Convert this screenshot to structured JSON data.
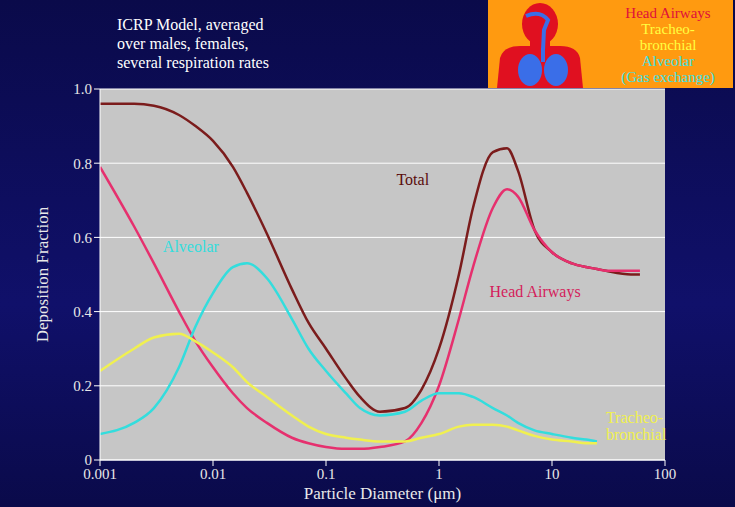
{
  "chart_data": {
    "type": "line",
    "title": "ICRP Model, averaged over males, females, several respiration rates",
    "x_label": "Particle Diameter (μm)",
    "y_label": "Deposition Fraction",
    "log": "x",
    "grid": true,
    "xlim": [
      0.001,
      100
    ],
    "xticks": [
      0.001,
      0.01,
      0.1,
      1,
      10,
      100
    ],
    "ylim": [
      0,
      1
    ],
    "yticks": [
      0,
      0.2,
      0.4,
      0.6,
      0.8,
      {
        "value": 1,
        "label": "1.0"
      }
    ],
    "x": [
      0.001,
      0.002,
      0.003,
      0.005,
      0.007,
      0.01,
      0.015,
      0.02,
      0.03,
      0.05,
      0.07,
      0.1,
      0.15,
      0.2,
      0.3,
      0.5,
      0.7,
      1,
      1.5,
      2,
      3,
      4,
      5,
      7,
      10,
      15,
      20,
      25,
      30,
      50,
      60
    ],
    "series": [
      {
        "name": "Total",
        "color": "#7b1c1c",
        "values": [
          0.96,
          0.96,
          0.955,
          0.93,
          0.9,
          0.86,
          0.79,
          0.72,
          0.61,
          0.46,
          0.37,
          0.3,
          0.22,
          0.17,
          0.13,
          0.14,
          0.19,
          0.3,
          0.5,
          0.68,
          0.83,
          0.84,
          0.78,
          0.62,
          0.56,
          0.53,
          0.52,
          0.515,
          0.51,
          0.5,
          0.5
        ]
      },
      {
        "name": "Head Airways",
        "color": "#e6306e",
        "values": [
          0.79,
          0.63,
          0.53,
          0.4,
          0.32,
          0.25,
          0.18,
          0.14,
          0.1,
          0.06,
          0.045,
          0.035,
          0.03,
          0.03,
          0.035,
          0.05,
          0.1,
          0.2,
          0.38,
          0.52,
          0.68,
          0.73,
          0.71,
          0.62,
          0.56,
          0.53,
          0.52,
          0.515,
          0.51,
          0.51,
          0.51
        ]
      },
      {
        "name": "Alveolar",
        "color": "#33dddd",
        "values": [
          0.07,
          0.1,
          0.14,
          0.25,
          0.36,
          0.45,
          0.52,
          0.53,
          0.49,
          0.38,
          0.3,
          0.24,
          0.18,
          0.14,
          0.12,
          0.13,
          0.16,
          0.18,
          0.18,
          0.17,
          0.14,
          0.12,
          0.1,
          0.08,
          0.07,
          0.06,
          0.055,
          0.05,
          null,
          null,
          null
        ]
      },
      {
        "name": "Tracheo-bronchial",
        "color": "#f0f050",
        "values": [
          0.24,
          0.3,
          0.33,
          0.34,
          0.32,
          0.29,
          0.25,
          0.21,
          0.17,
          0.12,
          0.09,
          0.07,
          0.06,
          0.055,
          0.05,
          0.05,
          0.06,
          0.07,
          0.09,
          0.095,
          0.095,
          0.09,
          0.08,
          0.065,
          0.055,
          0.05,
          0.045,
          0.045,
          null,
          null,
          null
        ]
      }
    ],
    "inset_labels": [
      {
        "text": "Head Airways",
        "color": "#e0103a"
      },
      {
        "text": "Tracheo-bronchial",
        "color": "#ffff40"
      },
      {
        "text": "Alveolar (Gas exchange)",
        "color": "#40e0e0"
      }
    ]
  }
}
